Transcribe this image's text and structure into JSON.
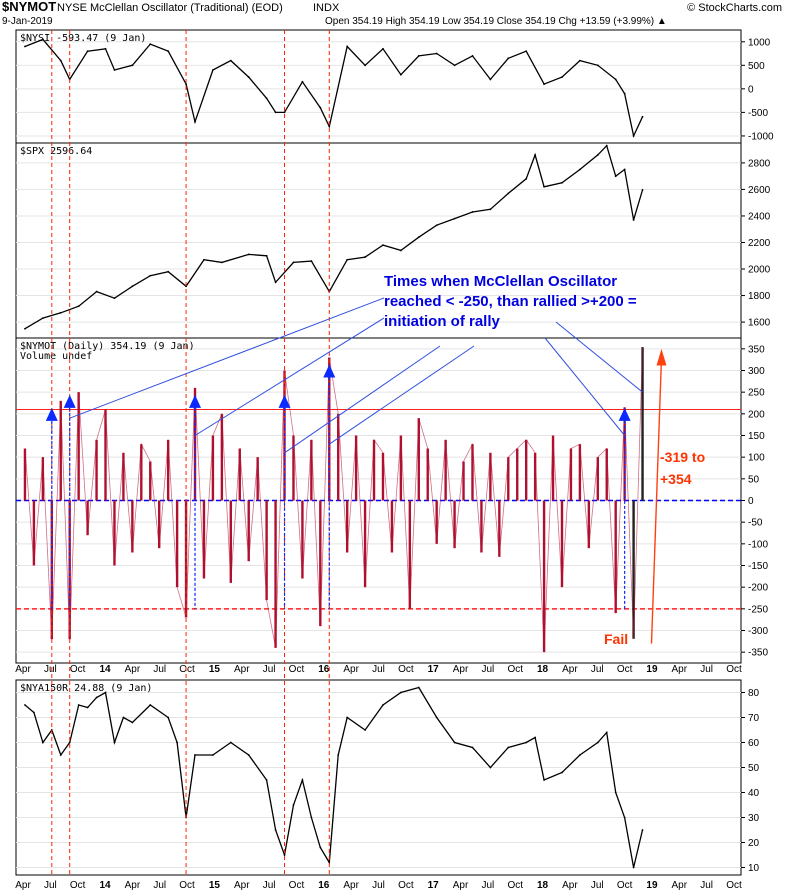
{
  "header": {
    "symbol": "$NYMOT",
    "name": "NYSE McClellan Oscillator (Traditional) (EOD)",
    "exchange": "INDX",
    "brand": "© StockCharts.com",
    "date": "9-Jan-2019",
    "quote": "Open 354.19  High 354.19  Low 354.19  Close 354.19  Chg +13.59 (+3.99%) ▲"
  },
  "x_axis_labels": [
    "Apr",
    "Jul",
    "Oct",
    "14",
    "Apr",
    "Jul",
    "Oct",
    "15",
    "Apr",
    "Jul",
    "Oct",
    "16",
    "Apr",
    "Jul",
    "Oct",
    "17",
    "Apr",
    "Jul",
    "Oct",
    "18",
    "Apr",
    "Jul",
    "Oct",
    "19",
    "Apr",
    "Jul",
    "Oct"
  ],
  "vertical_markers": [
    "2013-07",
    "2013-09",
    "2014-10",
    "2015-09",
    "2016-02"
  ],
  "annotations": {
    "callout_lines": [
      "Times when McClellan Oscillator",
      "reached < -250, than rallied >+200 =",
      "initiation of rally"
    ],
    "fail_label": "Fail",
    "rally_label_1": "-319 to",
    "rally_label_2": "+354",
    "colors": {
      "callout": "#0000e0",
      "red_text": "#ff3300",
      "marker": "#ff2200"
    }
  },
  "chart_data": [
    {
      "type": "line",
      "label": "$NYSI -593.47 (9 Jan)",
      "y_ticks": [
        1000,
        500,
        0,
        -500,
        -1000
      ],
      "ylim": [
        -1150,
        1250
      ],
      "x": [
        "2013-04",
        "2013-06",
        "2013-08",
        "2013-09",
        "2013-11",
        "2014-01",
        "2014-02",
        "2014-04",
        "2014-06",
        "2014-08",
        "2014-10",
        "2014-11",
        "2015-01",
        "2015-03",
        "2015-05",
        "2015-07",
        "2015-08",
        "2015-09",
        "2015-11",
        "2016-01",
        "2016-02",
        "2016-04",
        "2016-06",
        "2016-08",
        "2016-10",
        "2016-12",
        "2017-02",
        "2017-04",
        "2017-06",
        "2017-08",
        "2017-10",
        "2017-12",
        "2018-02",
        "2018-04",
        "2018-06",
        "2018-08",
        "2018-10",
        "2018-11",
        "2018-12",
        "2019-01"
      ],
      "values": [
        900,
        1050,
        600,
        200,
        800,
        850,
        400,
        500,
        950,
        800,
        100,
        -700,
        400,
        600,
        250,
        -200,
        -500,
        -500,
        150,
        -400,
        -800,
        900,
        500,
        850,
        300,
        700,
        750,
        500,
        700,
        200,
        650,
        800,
        100,
        250,
        600,
        500,
        200,
        -100,
        -1000,
        -593
      ]
    },
    {
      "type": "line",
      "label": "$SPX 2596.64",
      "y_ticks": [
        2800,
        2600,
        2400,
        2200,
        2000,
        1800,
        1600
      ],
      "ylim": [
        1480,
        2950
      ],
      "x": [
        "2013-04",
        "2013-06",
        "2013-08",
        "2013-10",
        "2013-12",
        "2014-02",
        "2014-04",
        "2014-06",
        "2014-08",
        "2014-10",
        "2014-12",
        "2015-02",
        "2015-05",
        "2015-07",
        "2015-08",
        "2015-10",
        "2015-12",
        "2016-02",
        "2016-04",
        "2016-06",
        "2016-08",
        "2016-10",
        "2016-12",
        "2017-02",
        "2017-04",
        "2017-06",
        "2017-08",
        "2017-10",
        "2017-12",
        "2018-01",
        "2018-02",
        "2018-04",
        "2018-06",
        "2018-08",
        "2018-09",
        "2018-10",
        "2018-11",
        "2018-12",
        "2019-01"
      ],
      "values": [
        1550,
        1630,
        1670,
        1720,
        1830,
        1780,
        1870,
        1950,
        1980,
        1870,
        2070,
        2050,
        2110,
        2100,
        1900,
        2050,
        2060,
        1830,
        2070,
        2090,
        2180,
        2140,
        2240,
        2330,
        2380,
        2430,
        2450,
        2570,
        2680,
        2860,
        2620,
        2650,
        2750,
        2860,
        2930,
        2700,
        2750,
        2370,
        2596
      ]
    },
    {
      "type": "bar",
      "label": "$NYMOT (Daily) 354.19 (9 Jan)",
      "sublabel": "Volume undef",
      "y_ticks": [
        350,
        300,
        250,
        200,
        150,
        100,
        50,
        0,
        -50,
        -100,
        -150,
        -200,
        -250,
        -300,
        -350
      ],
      "ylim": [
        -375,
        375
      ],
      "reference_lines": {
        "upper": 210,
        "lower": -250,
        "zero": 0
      },
      "x": [
        "2013-04",
        "2013-05",
        "2013-06",
        "2013-07",
        "2013-08",
        "2013-09",
        "2013-10",
        "2013-11",
        "2013-12",
        "2014-01",
        "2014-02",
        "2014-03",
        "2014-04",
        "2014-05",
        "2014-06",
        "2014-07",
        "2014-08",
        "2014-09",
        "2014-10",
        "2014-11",
        "2014-12",
        "2015-01",
        "2015-02",
        "2015-03",
        "2015-04",
        "2015-05",
        "2015-06",
        "2015-07",
        "2015-08",
        "2015-09",
        "2015-10",
        "2015-11",
        "2015-12",
        "2016-01",
        "2016-02",
        "2016-03",
        "2016-04",
        "2016-05",
        "2016-06",
        "2016-07",
        "2016-08",
        "2016-09",
        "2016-10",
        "2016-11",
        "2016-12",
        "2017-01",
        "2017-02",
        "2017-03",
        "2017-04",
        "2017-05",
        "2017-06",
        "2017-07",
        "2017-08",
        "2017-09",
        "2017-10",
        "2017-11",
        "2017-12",
        "2018-01",
        "2018-02",
        "2018-03",
        "2018-04",
        "2018-05",
        "2018-06",
        "2018-07",
        "2018-08",
        "2018-09",
        "2018-10",
        "2018-11",
        "2018-12",
        "2019-01"
      ],
      "values": [
        120,
        -150,
        100,
        -320,
        230,
        -320,
        250,
        -80,
        140,
        210,
        -150,
        110,
        -120,
        130,
        90,
        -110,
        140,
        -200,
        -270,
        260,
        -180,
        150,
        200,
        -190,
        120,
        -140,
        100,
        -230,
        -340,
        300,
        150,
        -180,
        140,
        -290,
        330,
        200,
        -120,
        150,
        -200,
        140,
        110,
        -120,
        150,
        -250,
        190,
        120,
        -100,
        140,
        -110,
        90,
        130,
        -120,
        110,
        -130,
        100,
        120,
        140,
        110,
        -350,
        150,
        -200,
        120,
        130,
        -110,
        100,
        120,
        -260,
        215,
        -319,
        354
      ]
    },
    {
      "type": "line",
      "label": "$NYA150R 24.88 (9 Jan)",
      "y_ticks": [
        80,
        70,
        60,
        50,
        40,
        30,
        20,
        10
      ],
      "ylim": [
        7,
        85
      ],
      "x": [
        "2013-04",
        "2013-05",
        "2013-06",
        "2013-07",
        "2013-08",
        "2013-09",
        "2013-10",
        "2013-11",
        "2013-12",
        "2014-01",
        "2014-02",
        "2014-03",
        "2014-04",
        "2014-06",
        "2014-08",
        "2014-09",
        "2014-10",
        "2014-11",
        "2015-01",
        "2015-03",
        "2015-05",
        "2015-07",
        "2015-08",
        "2015-09",
        "2015-10",
        "2015-11",
        "2015-12",
        "2016-01",
        "2016-02",
        "2016-03",
        "2016-04",
        "2016-06",
        "2016-08",
        "2016-10",
        "2016-12",
        "2017-02",
        "2017-04",
        "2017-06",
        "2017-08",
        "2017-10",
        "2017-12",
        "2018-01",
        "2018-02",
        "2018-04",
        "2018-06",
        "2018-08",
        "2018-09",
        "2018-10",
        "2018-11",
        "2018-12",
        "2019-01"
      ],
      "values": [
        75,
        72,
        60,
        65,
        55,
        60,
        75,
        74,
        78,
        80,
        60,
        70,
        68,
        75,
        70,
        60,
        30,
        55,
        55,
        60,
        55,
        45,
        25,
        15,
        35,
        45,
        30,
        18,
        12,
        55,
        70,
        65,
        75,
        80,
        82,
        70,
        60,
        58,
        50,
        58,
        60,
        62,
        45,
        48,
        55,
        60,
        64,
        40,
        30,
        10,
        25
      ]
    }
  ]
}
